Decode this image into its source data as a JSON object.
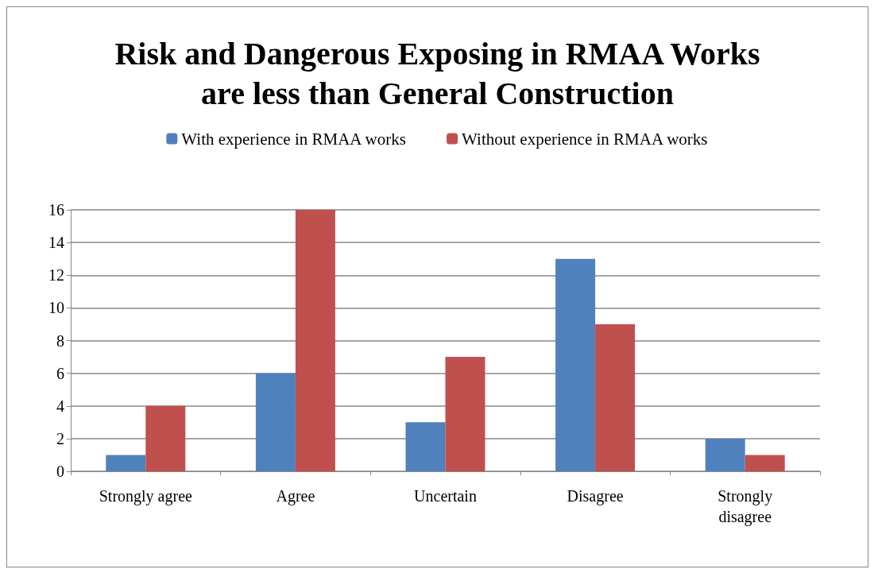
{
  "chart_data": {
    "type": "bar",
    "title": "Risk and Dangerous Exposing in RMAA Works\nare less than General Construction",
    "categories": [
      "Strongly agree",
      "Agree",
      "Uncertain",
      "Disagree",
      "Strongly\ndisagree"
    ],
    "series": [
      {
        "name": "With experience in RMAA works",
        "color": "#4f81bd",
        "values": [
          1,
          6,
          3,
          13,
          2
        ]
      },
      {
        "name": "Without experience in RMAA works",
        "color": "#c0504d",
        "values": [
          4,
          16,
          7,
          9,
          1
        ]
      }
    ],
    "ylim": [
      0,
      16
    ],
    "yticks": [
      0,
      2,
      4,
      6,
      8,
      10,
      12,
      14,
      16
    ],
    "grid": "y",
    "legend": "top"
  }
}
